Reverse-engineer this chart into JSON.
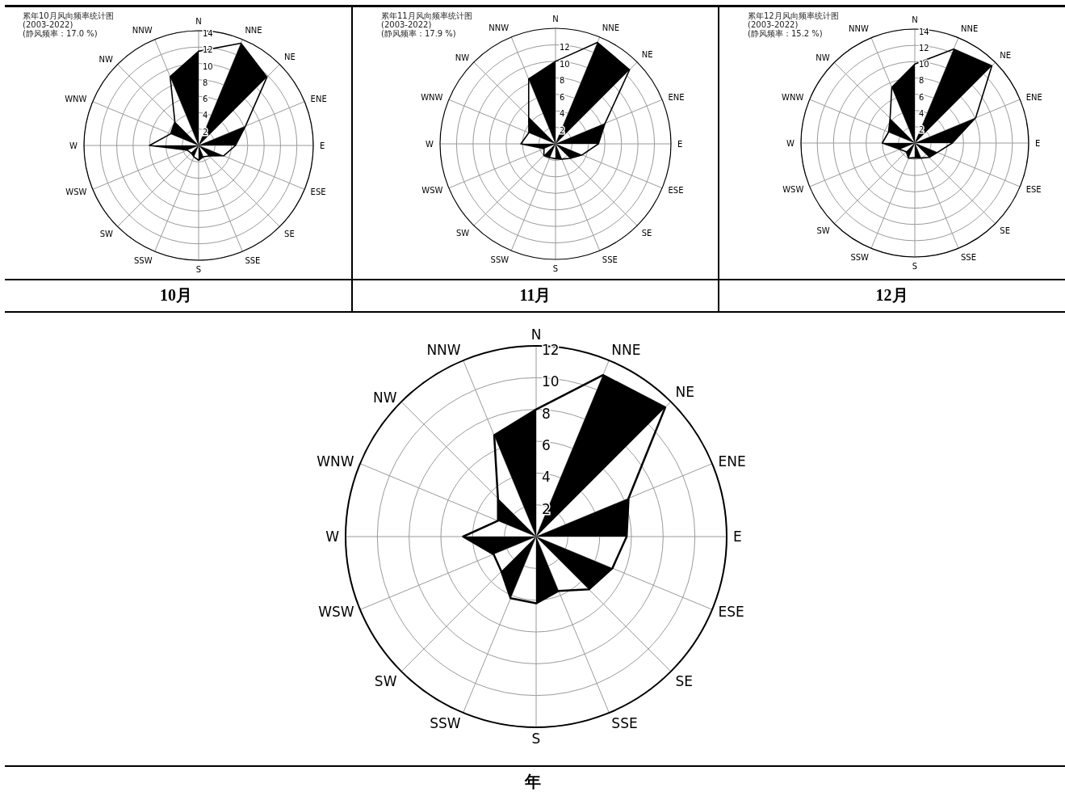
{
  "chart_data": [
    {
      "type": "radar",
      "title": "10月",
      "subtitle": "累年10月风向频率统计图",
      "annotations": [
        "(2003-2022)",
        "(静风频率：17.0 %)"
      ],
      "categories": [
        "N",
        "NNE",
        "NE",
        "ENE",
        "E",
        "ESE",
        "SE",
        "SSE",
        "S",
        "SSW",
        "SW",
        "WSW",
        "W",
        "WNW",
        "NW",
        "NNW"
      ],
      "series": [
        {
          "color": "#000000",
          "values": [
            11.5,
            13.5,
            11.8,
            6.2,
            4.5,
            3.3,
            1.8,
            1.5,
            1.8,
            1.5,
            1.3,
            1.5,
            6.0,
            3.7,
            4.1,
            9.1
          ]
        }
      ],
      "ylim": [
        0,
        14
      ],
      "yticks": [
        2,
        4,
        6,
        8,
        10,
        12,
        14
      ],
      "grid": true
    },
    {
      "type": "radar",
      "title": "11月",
      "subtitle": "累年11月风向频率统计图",
      "annotations": [
        "(2003-2022)",
        "(静风频率：17.9 %)"
      ],
      "categories": [
        "N",
        "NNE",
        "NE",
        "ENE",
        "E",
        "ESE",
        "SE",
        "SSE",
        "S",
        "SSW",
        "SW",
        "WSW",
        "W",
        "WNW",
        "NW",
        "NNW"
      ],
      "series": [
        {
          "color": "#000000",
          "values": [
            10.0,
            13.3,
            12.7,
            6.5,
            5.2,
            3.5,
            2.5,
            2.0,
            1.8,
            1.8,
            2.0,
            1.5,
            4.2,
            3.5,
            4.6,
            8.5
          ]
        }
      ],
      "ylim": [
        0,
        14
      ],
      "yticks": [
        2,
        4,
        6,
        8,
        10,
        12
      ],
      "grid": true
    },
    {
      "type": "radar",
      "title": "12月",
      "subtitle": "累年12月风向频率统计图",
      "annotations": [
        "(2003-2022)",
        "(静风频率：15.2 %)"
      ],
      "categories": [
        "N",
        "NNE",
        "NE",
        "ENE",
        "E",
        "ESE",
        "SE",
        "SSE",
        "S",
        "SSW",
        "SW",
        "WSW",
        "W",
        "WNW",
        "NW",
        "NNW"
      ],
      "series": [
        {
          "color": "#000000",
          "values": [
            9.7,
            12.5,
            13.4,
            8.1,
            4.6,
            3.0,
            2.5,
            2.0,
            1.8,
            2.0,
            1.5,
            2.0,
            4.0,
            3.5,
            4.3,
            7.4
          ]
        }
      ],
      "ylim": [
        0,
        14
      ],
      "yticks": [
        2,
        4,
        6,
        8,
        10,
        12,
        14
      ],
      "grid": true
    },
    {
      "type": "radar",
      "title": "年",
      "categories": [
        "N",
        "NNE",
        "NE",
        "ENE",
        "E",
        "ESE",
        "SE",
        "SSE",
        "S",
        "SSW",
        "SW",
        "WSW",
        "W",
        "WNW",
        "NW",
        "NNW"
      ],
      "series": [
        {
          "color": "#000000",
          "values": [
            8.0,
            11.0,
            11.5,
            6.3,
            5.7,
            5.2,
            4.7,
            3.7,
            4.2,
            4.2,
            3.1,
            2.9,
            4.6,
            2.6,
            3.4,
            6.9
          ]
        }
      ],
      "ylim": [
        0,
        12
      ],
      "yticks": [
        2,
        4,
        6,
        8,
        10,
        12
      ],
      "grid": true
    }
  ]
}
